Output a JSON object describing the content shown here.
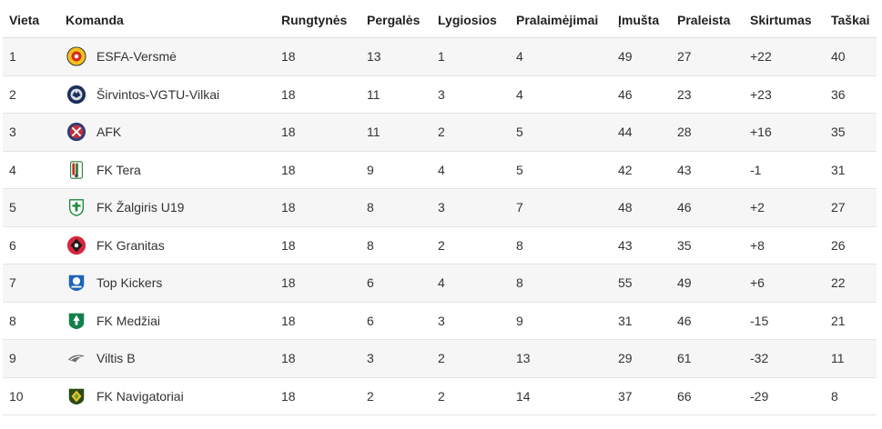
{
  "headers": {
    "place": "Vieta",
    "team": "Komanda",
    "played": "Rungtynės",
    "wins": "Pergalės",
    "draws": "Lygiosios",
    "losses": "Pralaimėjimai",
    "scored": "Įmušta",
    "conceded": "Praleista",
    "diff": "Skirtumas",
    "points": "Taškai"
  },
  "rows": [
    {
      "place": "1",
      "team": "ESFA-Versmė",
      "logo": "esfa-versme-logo",
      "played": "18",
      "wins": "13",
      "draws": "1",
      "losses": "4",
      "scored": "49",
      "conceded": "27",
      "diff": "+22",
      "points": "40"
    },
    {
      "place": "2",
      "team": "Širvintos-VGTU-Vilkai",
      "logo": "sirvintos-vgtu-vilkai-logo",
      "played": "18",
      "wins": "11",
      "draws": "3",
      "losses": "4",
      "scored": "46",
      "conceded": "23",
      "diff": "+23",
      "points": "36"
    },
    {
      "place": "3",
      "team": "AFK",
      "logo": "afk-logo",
      "played": "18",
      "wins": "11",
      "draws": "2",
      "losses": "5",
      "scored": "44",
      "conceded": "28",
      "diff": "+16",
      "points": "35"
    },
    {
      "place": "4",
      "team": "FK Tera",
      "logo": "fk-tera-logo",
      "played": "18",
      "wins": "9",
      "draws": "4",
      "losses": "5",
      "scored": "42",
      "conceded": "43",
      "diff": "-1",
      "points": "31"
    },
    {
      "place": "5",
      "team": "FK Žalgiris U19",
      "logo": "fk-zalgiris-logo",
      "played": "18",
      "wins": "8",
      "draws": "3",
      "losses": "7",
      "scored": "48",
      "conceded": "46",
      "diff": "+2",
      "points": "27"
    },
    {
      "place": "6",
      "team": "FK Granitas",
      "logo": "fk-granitas-logo",
      "played": "18",
      "wins": "8",
      "draws": "2",
      "losses": "8",
      "scored": "43",
      "conceded": "35",
      "diff": "+8",
      "points": "26"
    },
    {
      "place": "7",
      "team": "Top Kickers",
      "logo": "top-kickers-logo",
      "played": "18",
      "wins": "6",
      "draws": "4",
      "losses": "8",
      "scored": "55",
      "conceded": "49",
      "diff": "+6",
      "points": "22"
    },
    {
      "place": "8",
      "team": "FK Medžiai",
      "logo": "fk-medziai-logo",
      "played": "18",
      "wins": "6",
      "draws": "3",
      "losses": "9",
      "scored": "31",
      "conceded": "46",
      "diff": "-15",
      "points": "21"
    },
    {
      "place": "9",
      "team": "Viltis B",
      "logo": "viltis-b-logo",
      "played": "18",
      "wins": "3",
      "draws": "2",
      "losses": "13",
      "scored": "29",
      "conceded": "61",
      "diff": "-32",
      "points": "11"
    },
    {
      "place": "10",
      "team": "FK Navigatoriai",
      "logo": "fk-navigatoriai-logo",
      "played": "18",
      "wins": "2",
      "draws": "2",
      "losses": "14",
      "scored": "37",
      "conceded": "66",
      "diff": "-29",
      "points": "8"
    }
  ]
}
